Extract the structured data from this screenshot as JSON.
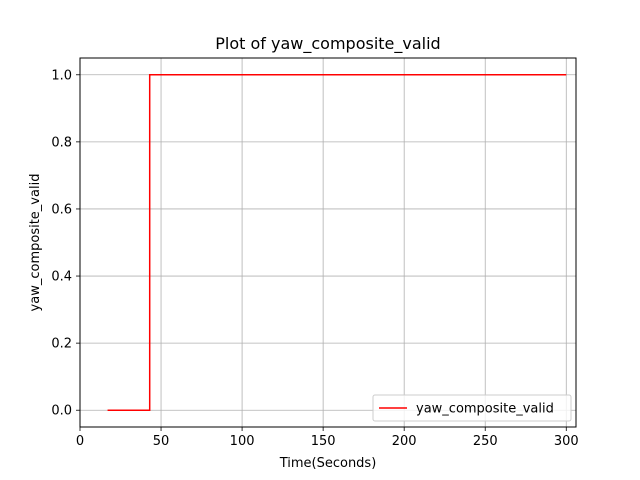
{
  "chart_data": {
    "type": "line",
    "title": "Plot of yaw_composite_valid",
    "xlabel": "Time(Seconds)",
    "ylabel": "yaw_composite_valid",
    "xlim": [
      0,
      306
    ],
    "ylim": [
      -0.05,
      1.05
    ],
    "xticks": [
      0,
      50,
      100,
      150,
      200,
      250,
      300
    ],
    "yticks": [
      0.0,
      0.2,
      0.4,
      0.6,
      0.8,
      1.0
    ],
    "xtick_labels": [
      "0",
      "50",
      "100",
      "150",
      "200",
      "250",
      "300"
    ],
    "ytick_labels": [
      "0.0",
      "0.2",
      "0.4",
      "0.6",
      "0.8",
      "1.0"
    ],
    "grid": true,
    "legend_position": "lower-right",
    "series": [
      {
        "name": "yaw_composite_valid",
        "color": "#ff0000",
        "step": true,
        "x": [
          17,
          43,
          43,
          300
        ],
        "y": [
          0,
          0,
          1,
          1
        ]
      }
    ]
  }
}
